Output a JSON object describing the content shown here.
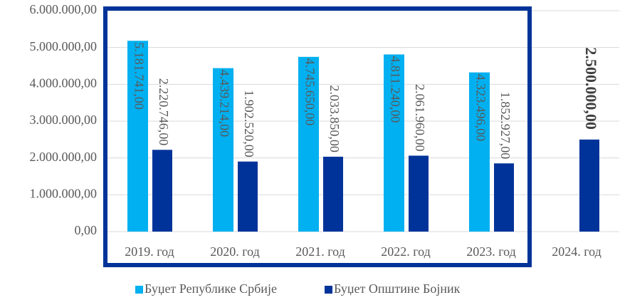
{
  "chart_data": {
    "type": "bar",
    "categories": [
      "2019. год",
      "2020. год",
      "2021. год",
      "2022. год",
      "2023. год",
      "2024. год"
    ],
    "series": [
      {
        "name": "Буџет Републике Србије",
        "color": "#00b0f0",
        "values": [
          5181741,
          4439214,
          4745650,
          4811240,
          4323496,
          null
        ],
        "value_labels": [
          "5.181.741,00",
          "4.439.214,00",
          "4.745.650,00",
          "4.811.240,00",
          "4.323.496,00",
          null
        ]
      },
      {
        "name": "Буџет Општине Бојник",
        "color": "#003399",
        "values": [
          2220746,
          1902520,
          2033850,
          2061960,
          1852927,
          2500000
        ],
        "value_labels": [
          "2.220.746,00",
          "1.902.520,00",
          "2.033.850,00",
          "2.061.960,00",
          "1.852.927,00",
          "2.500.000,00"
        ]
      }
    ],
    "ylim": [
      0,
      6000000
    ],
    "yticks": [
      {
        "value": 0,
        "label": "0,00"
      },
      {
        "value": 1000000,
        "label": "1.000.000,00"
      },
      {
        "value": 2000000,
        "label": "2.000.000,00"
      },
      {
        "value": 3000000,
        "label": "3.000.000,00"
      },
      {
        "value": 4000000,
        "label": "4.000.000,00"
      },
      {
        "value": 5000000,
        "label": "5.000.000,00"
      },
      {
        "value": 6000000,
        "label": "6.000.000,00"
      }
    ],
    "grid": true,
    "legend": "bottom"
  }
}
